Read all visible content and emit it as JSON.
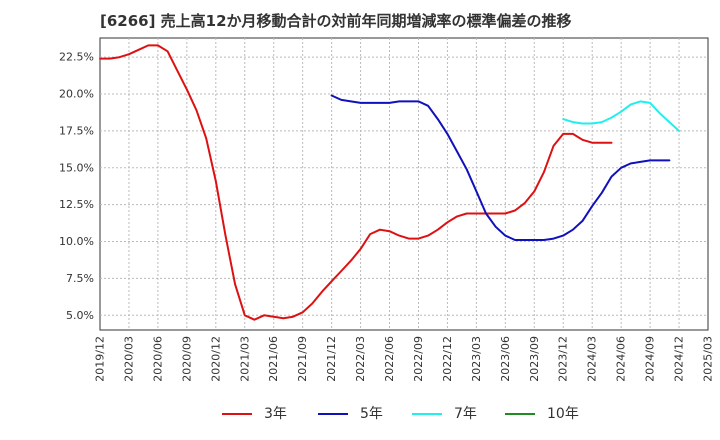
{
  "chart_data": {
    "type": "line",
    "title": "[6266]  売上高12か月移動合計の対前年同期増減率の標準偏差の推移",
    "xlabel": "",
    "ylabel": "",
    "ylim": [
      4.0,
      23.8
    ],
    "y_ticks": [
      5.0,
      7.5,
      10.0,
      12.5,
      15.0,
      17.5,
      20.0,
      22.5
    ],
    "y_tick_labels": [
      "5.0%",
      "7.5%",
      "10.0%",
      "12.5%",
      "15.0%",
      "17.5%",
      "20.0%",
      "22.5%"
    ],
    "x_ticks": [
      "2019/12",
      "2020/03",
      "2020/06",
      "2020/09",
      "2020/12",
      "2021/03",
      "2021/06",
      "2021/09",
      "2021/12",
      "2022/03",
      "2022/06",
      "2022/09",
      "2022/12",
      "2023/03",
      "2023/06",
      "2023/09",
      "2023/12",
      "2024/03",
      "2024/06",
      "2024/09",
      "2024/12",
      "2025/03"
    ],
    "grid": true,
    "legend_position": "bottom",
    "series": [
      {
        "name": "3年",
        "color": "#dd1111",
        "values": [
          [
            0,
            22.4
          ],
          [
            1,
            22.4
          ],
          [
            2,
            22.5
          ],
          [
            3,
            22.7
          ],
          [
            4,
            23.0
          ],
          [
            5,
            23.3
          ],
          [
            6,
            23.3
          ],
          [
            7,
            22.9
          ],
          [
            8,
            21.6
          ],
          [
            9,
            20.3
          ],
          [
            10,
            18.9
          ],
          [
            11,
            17.0
          ],
          [
            12,
            14.1
          ],
          [
            13,
            10.4
          ],
          [
            14,
            7.1
          ],
          [
            15,
            5.0
          ],
          [
            16,
            4.7
          ],
          [
            17,
            5.0
          ],
          [
            18,
            4.9
          ],
          [
            19,
            4.8
          ],
          [
            20,
            4.9
          ],
          [
            21,
            5.2
          ],
          [
            22,
            5.8
          ],
          [
            23,
            6.6
          ],
          [
            24,
            7.3
          ],
          [
            25,
            8.0
          ],
          [
            26,
            8.7
          ],
          [
            27,
            9.5
          ],
          [
            28,
            10.5
          ],
          [
            29,
            10.8
          ],
          [
            30,
            10.7
          ],
          [
            31,
            10.4
          ],
          [
            32,
            10.2
          ],
          [
            33,
            10.2
          ],
          [
            34,
            10.4
          ],
          [
            35,
            10.8
          ],
          [
            36,
            11.3
          ],
          [
            37,
            11.7
          ],
          [
            38,
            11.9
          ],
          [
            39,
            11.9
          ],
          [
            40,
            11.9
          ],
          [
            41,
            11.9
          ],
          [
            42,
            11.9
          ],
          [
            43,
            12.1
          ],
          [
            44,
            12.6
          ],
          [
            45,
            13.4
          ],
          [
            46,
            14.7
          ],
          [
            47,
            16.5
          ],
          [
            48,
            17.3
          ],
          [
            49,
            17.3
          ],
          [
            50,
            16.9
          ],
          [
            51,
            16.7
          ],
          [
            52,
            16.7
          ],
          [
            53,
            16.7
          ]
        ]
      },
      {
        "name": "5年",
        "color": "#1111bb",
        "values": [
          [
            24,
            19.9
          ],
          [
            25,
            19.6
          ],
          [
            26,
            19.5
          ],
          [
            27,
            19.4
          ],
          [
            28,
            19.4
          ],
          [
            29,
            19.4
          ],
          [
            30,
            19.4
          ],
          [
            31,
            19.5
          ],
          [
            32,
            19.5
          ],
          [
            33,
            19.5
          ],
          [
            34,
            19.2
          ],
          [
            35,
            18.3
          ],
          [
            36,
            17.3
          ],
          [
            37,
            16.1
          ],
          [
            38,
            14.9
          ],
          [
            39,
            13.4
          ],
          [
            40,
            11.9
          ],
          [
            41,
            11.0
          ],
          [
            42,
            10.4
          ],
          [
            43,
            10.1
          ],
          [
            44,
            10.1
          ],
          [
            45,
            10.1
          ],
          [
            46,
            10.1
          ],
          [
            47,
            10.2
          ],
          [
            48,
            10.4
          ],
          [
            49,
            10.8
          ],
          [
            50,
            11.4
          ],
          [
            51,
            12.4
          ],
          [
            52,
            13.3
          ],
          [
            53,
            14.4
          ],
          [
            54,
            15.0
          ],
          [
            55,
            15.3
          ],
          [
            56,
            15.4
          ],
          [
            57,
            15.5
          ],
          [
            58,
            15.5
          ],
          [
            59,
            15.5
          ]
        ]
      },
      {
        "name": "7年",
        "color": "#22eeee",
        "values": [
          [
            48,
            18.3
          ],
          [
            49,
            18.1
          ],
          [
            50,
            18.0
          ],
          [
            51,
            18.0
          ],
          [
            52,
            18.1
          ],
          [
            53,
            18.4
          ],
          [
            54,
            18.8
          ],
          [
            55,
            19.3
          ],
          [
            56,
            19.5
          ],
          [
            57,
            19.4
          ],
          [
            58,
            18.7
          ],
          [
            59,
            18.1
          ],
          [
            60,
            17.5
          ]
        ]
      },
      {
        "name": "10年",
        "color": "#228b22",
        "values": []
      }
    ]
  }
}
